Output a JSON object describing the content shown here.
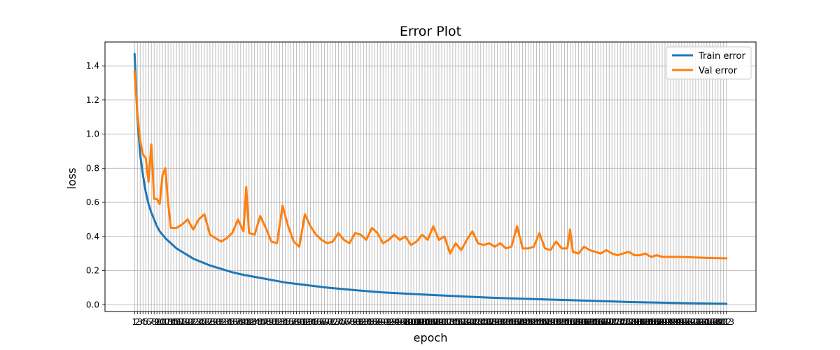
{
  "chart_data": {
    "type": "line",
    "title": "Error Plot",
    "xlabel": "epoch",
    "ylabel": "loss",
    "x_range": [
      1,
      213
    ],
    "ylim": [
      -0.04,
      1.54
    ],
    "yticks": [
      0.0,
      0.2,
      0.4,
      0.6,
      0.8,
      1.0,
      1.2,
      1.4
    ],
    "grid": true,
    "legend_position": "top-right",
    "series": [
      {
        "name": "Train error",
        "color": "#1f77b4",
        "points": [
          [
            1,
            1.47
          ],
          [
            2,
            1.1
          ],
          [
            3,
            0.88
          ],
          [
            4,
            0.76
          ],
          [
            5,
            0.66
          ],
          [
            6,
            0.59
          ],
          [
            7,
            0.54
          ],
          [
            8,
            0.5
          ],
          [
            9,
            0.46
          ],
          [
            10,
            0.43
          ],
          [
            12,
            0.39
          ],
          [
            14,
            0.36
          ],
          [
            16,
            0.33
          ],
          [
            18,
            0.31
          ],
          [
            20,
            0.29
          ],
          [
            22,
            0.27
          ],
          [
            25,
            0.25
          ],
          [
            28,
            0.23
          ],
          [
            32,
            0.21
          ],
          [
            36,
            0.19
          ],
          [
            40,
            0.175
          ],
          [
            45,
            0.16
          ],
          [
            50,
            0.145
          ],
          [
            55,
            0.13
          ],
          [
            60,
            0.12
          ],
          [
            65,
            0.11
          ],
          [
            70,
            0.1
          ],
          [
            80,
            0.085
          ],
          [
            90,
            0.072
          ],
          [
            100,
            0.063
          ],
          [
            110,
            0.055
          ],
          [
            120,
            0.047
          ],
          [
            130,
            0.04
          ],
          [
            140,
            0.035
          ],
          [
            150,
            0.03
          ],
          [
            160,
            0.025
          ],
          [
            170,
            0.02
          ],
          [
            180,
            0.015
          ],
          [
            190,
            0.012
          ],
          [
            200,
            0.008
          ],
          [
            213,
            0.005
          ]
        ]
      },
      {
        "name": "Val error",
        "color": "#ff7f0e",
        "points": [
          [
            1,
            1.37
          ],
          [
            2,
            1.12
          ],
          [
            3,
            0.96
          ],
          [
            4,
            0.88
          ],
          [
            5,
            0.86
          ],
          [
            6,
            0.72
          ],
          [
            7,
            0.94
          ],
          [
            8,
            0.62
          ],
          [
            9,
            0.62
          ],
          [
            10,
            0.59
          ],
          [
            11,
            0.76
          ],
          [
            12,
            0.8
          ],
          [
            13,
            0.6
          ],
          [
            14,
            0.45
          ],
          [
            16,
            0.45
          ],
          [
            18,
            0.47
          ],
          [
            20,
            0.5
          ],
          [
            22,
            0.44
          ],
          [
            24,
            0.5
          ],
          [
            26,
            0.53
          ],
          [
            28,
            0.41
          ],
          [
            30,
            0.39
          ],
          [
            32,
            0.37
          ],
          [
            34,
            0.39
          ],
          [
            36,
            0.42
          ],
          [
            38,
            0.5
          ],
          [
            40,
            0.43
          ],
          [
            41,
            0.69
          ],
          [
            42,
            0.42
          ],
          [
            44,
            0.41
          ],
          [
            46,
            0.52
          ],
          [
            48,
            0.45
          ],
          [
            50,
            0.37
          ],
          [
            52,
            0.36
          ],
          [
            54,
            0.58
          ],
          [
            56,
            0.46
          ],
          [
            58,
            0.37
          ],
          [
            60,
            0.34
          ],
          [
            62,
            0.53
          ],
          [
            64,
            0.46
          ],
          [
            66,
            0.41
          ],
          [
            68,
            0.38
          ],
          [
            70,
            0.36
          ],
          [
            72,
            0.37
          ],
          [
            74,
            0.42
          ],
          [
            76,
            0.38
          ],
          [
            78,
            0.36
          ],
          [
            80,
            0.42
          ],
          [
            82,
            0.41
          ],
          [
            84,
            0.38
          ],
          [
            86,
            0.45
          ],
          [
            88,
            0.42
          ],
          [
            90,
            0.36
          ],
          [
            92,
            0.38
          ],
          [
            94,
            0.41
          ],
          [
            96,
            0.38
          ],
          [
            98,
            0.4
          ],
          [
            100,
            0.35
          ],
          [
            102,
            0.37
          ],
          [
            104,
            0.41
          ],
          [
            106,
            0.38
          ],
          [
            108,
            0.46
          ],
          [
            110,
            0.38
          ],
          [
            112,
            0.4
          ],
          [
            114,
            0.3
          ],
          [
            116,
            0.36
          ],
          [
            118,
            0.32
          ],
          [
            120,
            0.38
          ],
          [
            122,
            0.43
          ],
          [
            124,
            0.36
          ],
          [
            126,
            0.35
          ],
          [
            128,
            0.36
          ],
          [
            130,
            0.34
          ],
          [
            132,
            0.36
          ],
          [
            134,
            0.33
          ],
          [
            136,
            0.34
          ],
          [
            138,
            0.46
          ],
          [
            140,
            0.33
          ],
          [
            142,
            0.33
          ],
          [
            144,
            0.34
          ],
          [
            146,
            0.42
          ],
          [
            148,
            0.33
          ],
          [
            150,
            0.32
          ],
          [
            152,
            0.37
          ],
          [
            154,
            0.33
          ],
          [
            156,
            0.33
          ],
          [
            157,
            0.44
          ],
          [
            158,
            0.31
          ],
          [
            160,
            0.3
          ],
          [
            162,
            0.34
          ],
          [
            164,
            0.32
          ],
          [
            166,
            0.31
          ],
          [
            168,
            0.3
          ],
          [
            170,
            0.32
          ],
          [
            172,
            0.3
          ],
          [
            174,
            0.29
          ],
          [
            176,
            0.3
          ],
          [
            178,
            0.31
          ],
          [
            180,
            0.29
          ],
          [
            182,
            0.29
          ],
          [
            184,
            0.3
          ],
          [
            186,
            0.28
          ],
          [
            188,
            0.29
          ],
          [
            190,
            0.28
          ],
          [
            193,
            0.28
          ],
          [
            196,
            0.28
          ],
          [
            200,
            0.278
          ],
          [
            205,
            0.275
          ],
          [
            210,
            0.273
          ],
          [
            213,
            0.272
          ]
        ]
      }
    ]
  }
}
